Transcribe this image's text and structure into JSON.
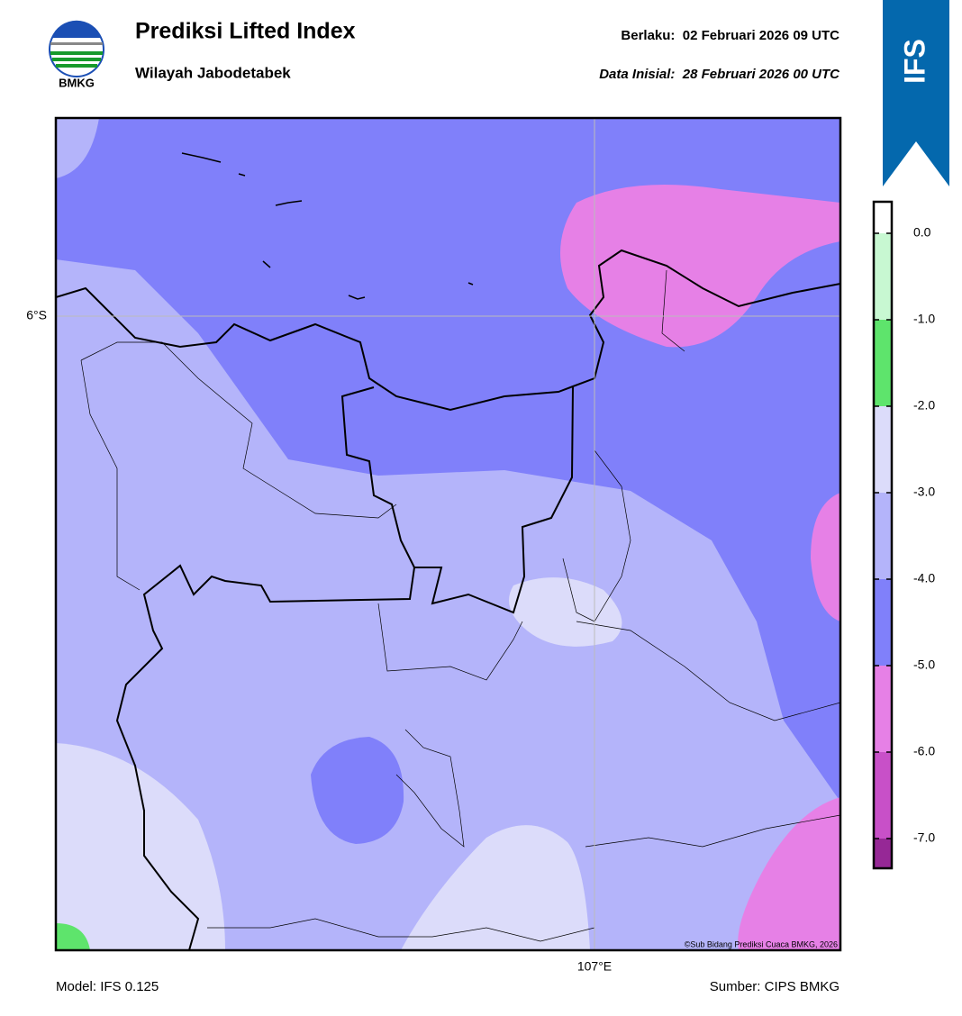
{
  "logo": {
    "label": "BMKG"
  },
  "header": {
    "title": "Prediksi Lifted Index",
    "subtitle": "Wilayah Jabodetabek",
    "valid": "Berlaku:  02 Februari 2026 09 UTC",
    "init": "Data Inisial:  28 Februari 2026 00 UTC"
  },
  "badge": "IFS",
  "map": {
    "lat_label": "6°S",
    "lon_label": "107°E",
    "credit": "©Sub Bidang Prediksi Cuaca BMKG, 2026"
  },
  "colorbar": {
    "ticks": [
      {
        "value": 0,
        "label": "0.0"
      },
      {
        "value": -1,
        "label": "-1.0"
      },
      {
        "value": -2,
        "label": "-2.0"
      },
      {
        "value": -3,
        "label": "-3.0"
      },
      {
        "value": -4,
        "label": "-4.0"
      },
      {
        "value": -5,
        "label": "-5.0"
      },
      {
        "value": -6,
        "label": "-6.0"
      },
      {
        "value": -7,
        "label": "-7.0"
      }
    ],
    "colors": [
      "#ffffff",
      "#c8f8d2",
      "#5ee46c",
      "#dcdcfa",
      "#b4b4fa",
      "#8080fa",
      "#e680e6",
      "#c850c8",
      "#962896"
    ]
  },
  "footer": {
    "model": "Model: IFS 0.125",
    "source": "Sumber: CIPS BMKG"
  }
}
